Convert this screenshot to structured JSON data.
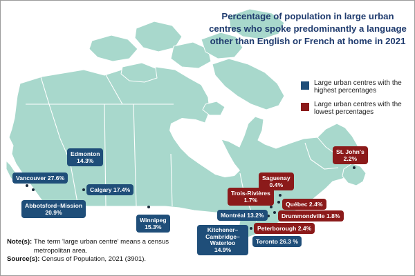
{
  "title": "Percentage of population in large urban centres who spoke predominantly a language other than English or French at home in 2021",
  "legend": {
    "highest": {
      "label": "Large urban centres with the highest percentages",
      "color": "#1f4e79"
    },
    "lowest": {
      "label": "Large urban centres with the lowest percentages",
      "color": "#8b1a1a"
    }
  },
  "cities": [
    {
      "key": "vancouver",
      "name": "Vancouver",
      "value": "27.6%",
      "group": "highest"
    },
    {
      "key": "abbotsford",
      "name": "Abbotsford–Mission",
      "value": "20.9%",
      "group": "highest"
    },
    {
      "key": "edmonton",
      "name": "Edmonton",
      "value": "14.3%",
      "group": "highest"
    },
    {
      "key": "calgary",
      "name": "Calgary",
      "value": "17.4%",
      "group": "highest"
    },
    {
      "key": "winnipeg",
      "name": "Winnipeg",
      "value": "15.3%",
      "group": "highest"
    },
    {
      "key": "kitchener",
      "name": "Kitchener–Cambridge–Waterloo",
      "value": "14.9%",
      "group": "highest"
    },
    {
      "key": "toronto",
      "name": "Toronto",
      "value": "26.3 %",
      "group": "highest"
    },
    {
      "key": "montreal",
      "name": "Montréal",
      "value": "13.2%",
      "group": "highest"
    },
    {
      "key": "troisrivieres",
      "name": "Trois-Rivières",
      "value": "1.7%",
      "group": "lowest"
    },
    {
      "key": "saguenay",
      "name": "Saguenay",
      "value": "0.4%",
      "group": "lowest"
    },
    {
      "key": "quebec",
      "name": "Québec",
      "value": "2.4%",
      "group": "lowest"
    },
    {
      "key": "drummondville",
      "name": "Drummondville",
      "value": "1.8%",
      "group": "lowest"
    },
    {
      "key": "peterborough",
      "name": "Peterborough",
      "value": "2.4%",
      "group": "lowest"
    },
    {
      "key": "stjohns",
      "name": "St. John's",
      "value": "2.2%",
      "group": "lowest"
    }
  ],
  "notes": {
    "note_label": "Note(s):",
    "note_text": "The term 'large urban centre' means a census metropolitan area.",
    "source_label": "Source(s):",
    "source_text": "Census of Population, 2021 (3901)."
  },
  "colors": {
    "land": "#a8d8cc",
    "title": "#1f3b6e"
  }
}
